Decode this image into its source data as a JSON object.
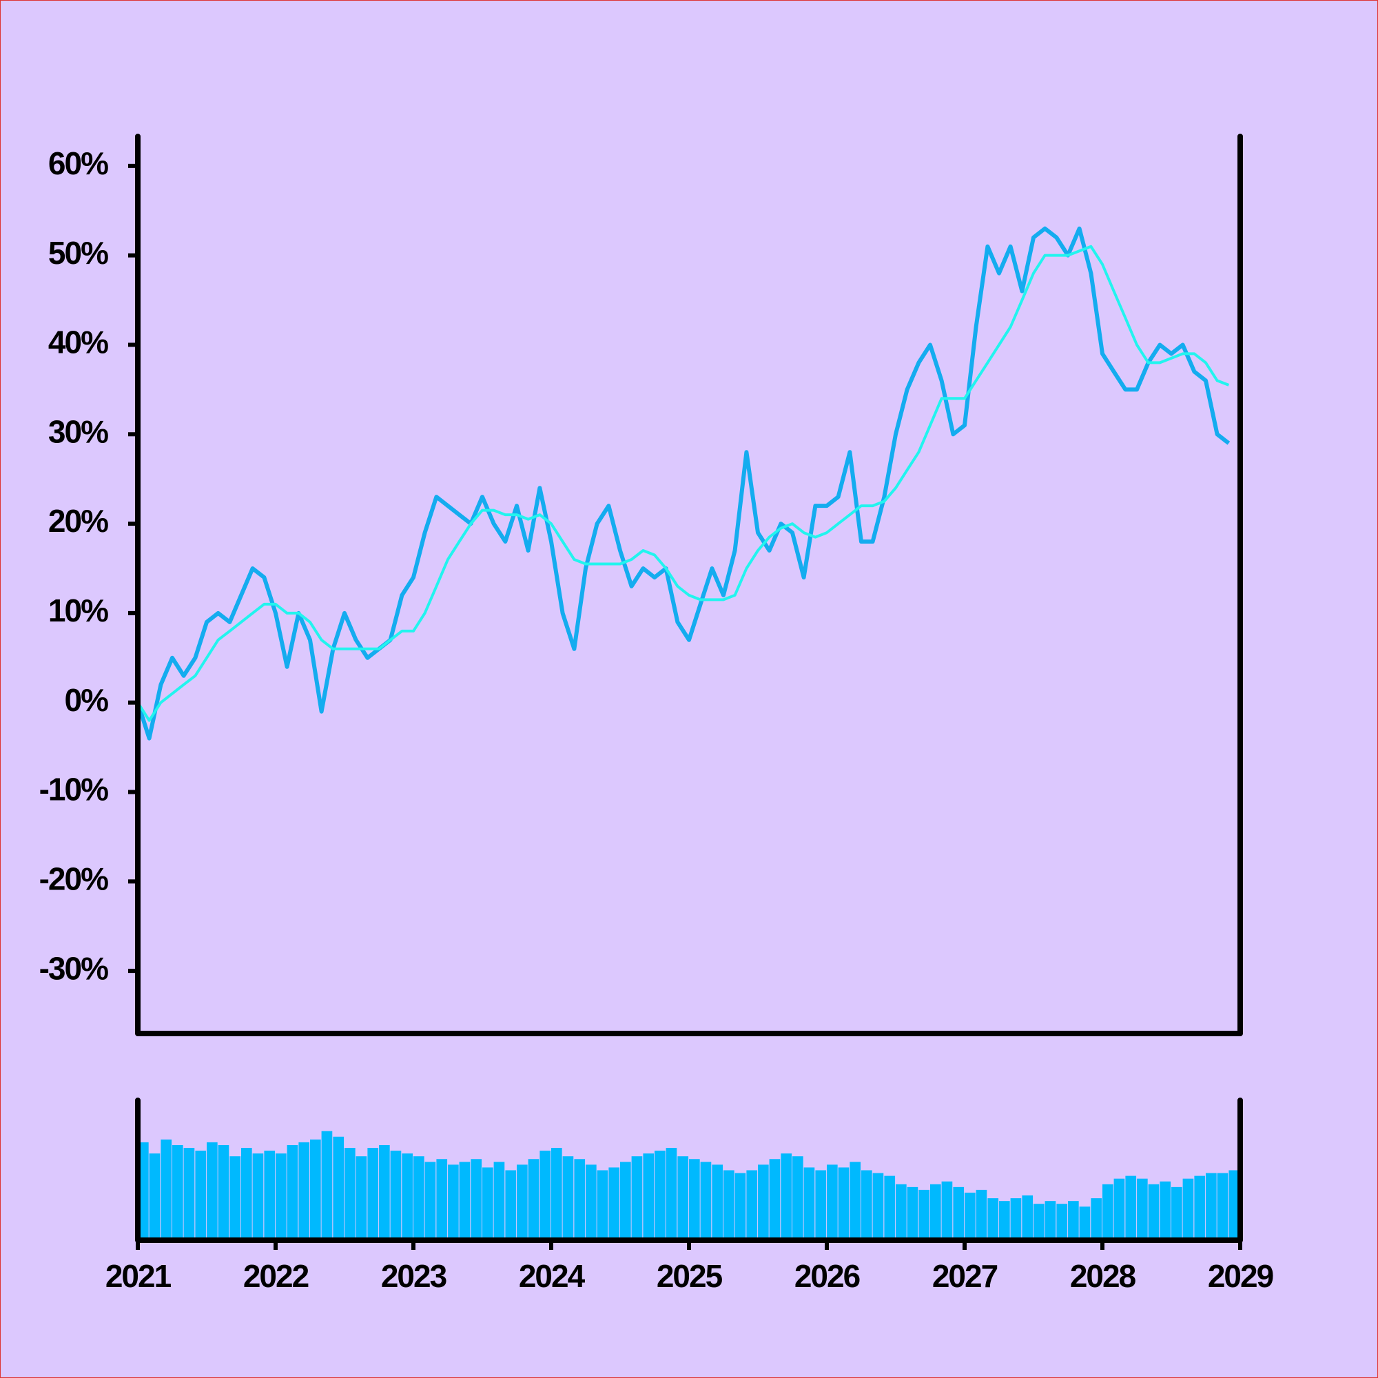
{
  "chart_data": [
    {
      "type": "line",
      "x": [
        2021,
        2021.083,
        2021.167,
        2021.25,
        2021.333,
        2021.417,
        2021.5,
        2021.583,
        2021.667,
        2021.75,
        2021.833,
        2021.917,
        2022,
        2022.083,
        2022.167,
        2022.25,
        2022.333,
        2022.417,
        2022.5,
        2022.583,
        2022.667,
        2022.75,
        2022.833,
        2022.917,
        2023,
        2023.083,
        2023.167,
        2023.25,
        2023.333,
        2023.417,
        2023.5,
        2023.583,
        2023.667,
        2023.75,
        2023.833,
        2023.917,
        2024,
        2024.083,
        2024.167,
        2024.25,
        2024.333,
        2024.417,
        2024.5,
        2024.583,
        2024.667,
        2024.75,
        2024.833,
        2024.917,
        2025,
        2025.083,
        2025.167,
        2025.25,
        2025.333,
        2025.417,
        2025.5,
        2025.583,
        2025.667,
        2025.75,
        2025.833,
        2025.917,
        2026,
        2026.083,
        2026.167,
        2026.25,
        2026.333,
        2026.417,
        2026.5,
        2026.583,
        2026.667,
        2026.75,
        2026.833,
        2026.917,
        2027,
        2027.083,
        2027.167,
        2027.25,
        2027.333,
        2027.417,
        2027.5,
        2027.583,
        2027.667,
        2027.75,
        2027.833,
        2027.917,
        2028,
        2028.083,
        2028.167,
        2028.25,
        2028.333,
        2028.417,
        2028.5,
        2028.583,
        2028.667,
        2028.75,
        2028.833,
        2028.917
      ],
      "series": [
        {
          "color": "#14acef",
          "width": 6,
          "values": [
            0,
            -4,
            2,
            5,
            3,
            5,
            9,
            10,
            9,
            12,
            15,
            14,
            10,
            4,
            10,
            7,
            -1,
            6,
            10,
            7,
            5,
            6,
            7,
            12,
            14,
            19,
            23,
            22,
            21,
            20,
            23,
            20,
            18,
            22,
            17,
            24,
            18,
            10,
            6,
            15,
            20,
            22,
            17,
            13,
            15,
            14,
            15,
            9,
            7,
            11,
            15,
            12,
            17,
            28,
            19,
            17,
            20,
            19,
            14,
            22,
            22,
            23,
            28,
            18,
            18,
            23,
            30,
            35,
            38,
            40,
            36,
            30,
            31,
            42,
            51,
            48,
            51,
            46,
            52,
            53,
            52,
            50,
            53,
            48,
            39,
            37,
            35,
            35,
            38,
            40,
            39,
            40,
            37,
            36,
            30,
            29
          ]
        },
        {
          "color": "#22f4ee",
          "width": 4,
          "values": [
            0,
            -2,
            0,
            1,
            2,
            3,
            5,
            7,
            8,
            9,
            10,
            11,
            11,
            10,
            10,
            9,
            7,
            6,
            6,
            6,
            6,
            6,
            7,
            8,
            8,
            10,
            13,
            16,
            18,
            20,
            21.5,
            21.5,
            21,
            21,
            20.5,
            21,
            20,
            18,
            16,
            15.5,
            15.5,
            15.5,
            15.5,
            16,
            17,
            16.5,
            15,
            13,
            12,
            11.5,
            11.5,
            11.5,
            12,
            15,
            17,
            18.5,
            19.5,
            20,
            19,
            18.5,
            19,
            20,
            21,
            22,
            22,
            22.5,
            24,
            26,
            28,
            31,
            34,
            34,
            34,
            36,
            38,
            40,
            42,
            45,
            48,
            50,
            50,
            50,
            50.5,
            51,
            49,
            46,
            43,
            40,
            38,
            38,
            38.5,
            39,
            39,
            38,
            36,
            35.5
          ]
        }
      ],
      "xlim": [
        2021,
        2029
      ],
      "ylim": [
        -37,
        63.3
      ],
      "yticks": [
        {
          "value": -30,
          "label": "-30%"
        },
        {
          "value": -20,
          "label": "-20%"
        },
        {
          "value": -10,
          "label": "-10%"
        },
        {
          "value": 0,
          "label": "0%"
        },
        {
          "value": 10,
          "label": "10%"
        },
        {
          "value": 20,
          "label": "20%"
        },
        {
          "value": 30,
          "label": "30%"
        },
        {
          "value": 40,
          "label": "40%"
        },
        {
          "value": 50,
          "label": "50%"
        },
        {
          "value": 60,
          "label": "60%"
        }
      ]
    },
    {
      "type": "bar",
      "x": [
        2021,
        2021.083,
        2021.167,
        2021.25,
        2021.333,
        2021.417,
        2021.5,
        2021.583,
        2021.667,
        2021.75,
        2021.833,
        2021.917,
        2022,
        2022.083,
        2022.167,
        2022.25,
        2022.333,
        2022.417,
        2022.5,
        2022.583,
        2022.667,
        2022.75,
        2022.833,
        2022.917,
        2023,
        2023.083,
        2023.167,
        2023.25,
        2023.333,
        2023.417,
        2023.5,
        2023.583,
        2023.667,
        2023.75,
        2023.833,
        2023.917,
        2024,
        2024.083,
        2024.167,
        2024.25,
        2024.333,
        2024.417,
        2024.5,
        2024.583,
        2024.667,
        2024.75,
        2024.833,
        2024.917,
        2025,
        2025.083,
        2025.167,
        2025.25,
        2025.333,
        2025.417,
        2025.5,
        2025.583,
        2025.667,
        2025.75,
        2025.833,
        2025.917,
        2026,
        2026.083,
        2026.167,
        2026.25,
        2026.333,
        2026.417,
        2026.5,
        2026.583,
        2026.667,
        2026.75,
        2026.833,
        2026.917,
        2027,
        2027.083,
        2027.167,
        2027.25,
        2027.333,
        2027.417,
        2027.5,
        2027.583,
        2027.667,
        2027.75,
        2027.833,
        2027.917,
        2028,
        2028.083,
        2028.167,
        2028.25,
        2028.333,
        2028.417,
        2028.5,
        2028.583,
        2028.667,
        2028.75,
        2028.833,
        2028.917
      ],
      "values": [
        70,
        62,
        72,
        68,
        66,
        64,
        70,
        68,
        60,
        66,
        62,
        64,
        62,
        68,
        70,
        72,
        78,
        74,
        66,
        60,
        66,
        68,
        64,
        62,
        60,
        56,
        58,
        54,
        56,
        58,
        52,
        56,
        50,
        54,
        58,
        64,
        66,
        60,
        58,
        54,
        50,
        52,
        56,
        60,
        62,
        64,
        66,
        60,
        58,
        56,
        54,
        50,
        48,
        50,
        54,
        58,
        62,
        60,
        52,
        50,
        54,
        52,
        56,
        50,
        48,
        46,
        40,
        38,
        36,
        40,
        42,
        38,
        34,
        36,
        30,
        28,
        30,
        32,
        26,
        28,
        26,
        28,
        24,
        30,
        40,
        44,
        46,
        44,
        40,
        42,
        38,
        44,
        46,
        48,
        48,
        50
      ],
      "color": "#00b9fe",
      "xlim": [
        2021,
        2029
      ],
      "ylim": [
        0,
        100
      ],
      "xticks": [
        2021,
        2022,
        2023,
        2024,
        2025,
        2026,
        2027,
        2028,
        2029
      ]
    }
  ]
}
